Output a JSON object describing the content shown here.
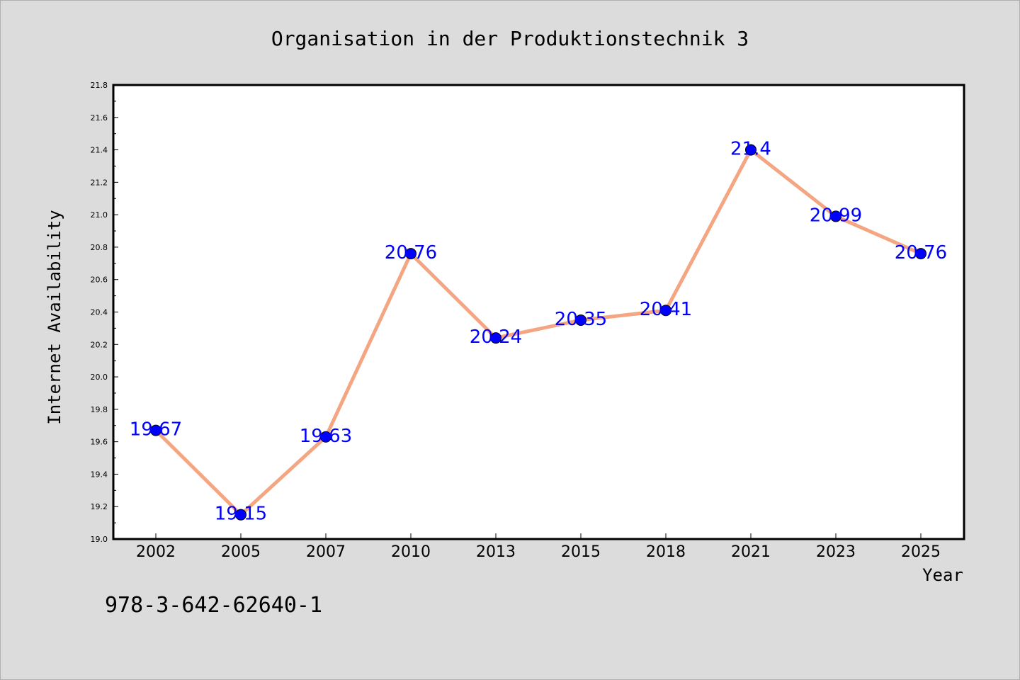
{
  "chart_data": {
    "type": "line",
    "title": "Organisation in der Produktionstechnik 3",
    "xlabel": "Year",
    "ylabel": "Internet Availability",
    "categories": [
      "2002",
      "2005",
      "2007",
      "2010",
      "2013",
      "2015",
      "2018",
      "2021",
      "2023",
      "2025"
    ],
    "values": [
      19.67,
      19.15,
      19.63,
      20.76,
      20.24,
      20.35,
      20.41,
      21.4,
      20.99,
      20.76
    ],
    "data_labels": [
      "19.67",
      "19.15",
      "19.63",
      "20.76",
      "20.24",
      "20.35",
      "20.41",
      "21.4",
      "20.99",
      "20.76"
    ],
    "ylim": [
      19.0,
      21.8
    ],
    "yticks": [
      "19.0",
      "19.2",
      "19.4",
      "19.6",
      "19.8",
      "20.0",
      "20.2",
      "20.4",
      "20.6",
      "20.8",
      "21.0",
      "21.2",
      "21.4",
      "21.6",
      "21.8"
    ],
    "grid": false,
    "line_color": "#f4a582",
    "marker_color": "#0000ff",
    "label_color": "#0000ff"
  },
  "footnote": "978-3-642-62640-1"
}
